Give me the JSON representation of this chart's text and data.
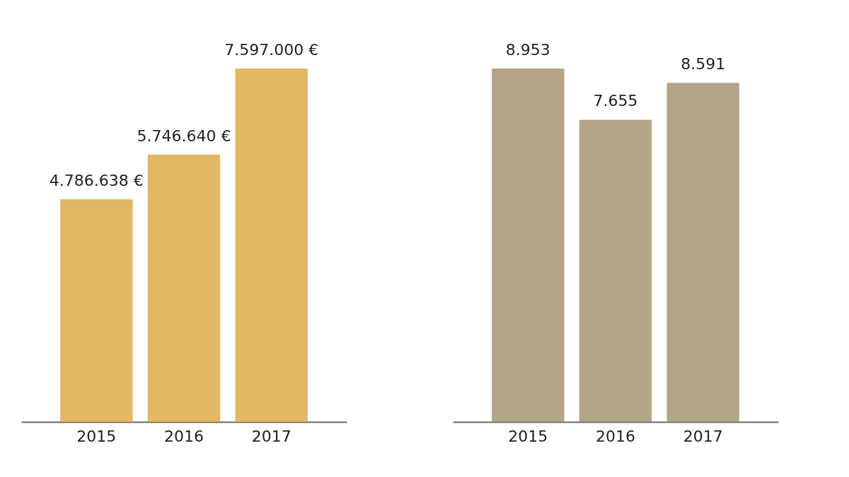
{
  "chart_data": [
    {
      "type": "bar",
      "categories": [
        "2015",
        "2016",
        "2017"
      ],
      "values": [
        4786638,
        5746640,
        7597000
      ],
      "color": "#e2b765",
      "value_labels": [
        "4.786.638 €",
        "5.746.640 €",
        "7.597.000 €"
      ],
      "tick_labels": "x"
    },
    {
      "type": "bar",
      "categories": [
        "2015",
        "2016",
        "2017"
      ],
      "values": [
        8953,
        7655,
        8591
      ],
      "color": "#b5a587",
      "value_labels": [
        "8.953",
        "7.655",
        "8.591"
      ],
      "tick_labels": "x"
    }
  ]
}
